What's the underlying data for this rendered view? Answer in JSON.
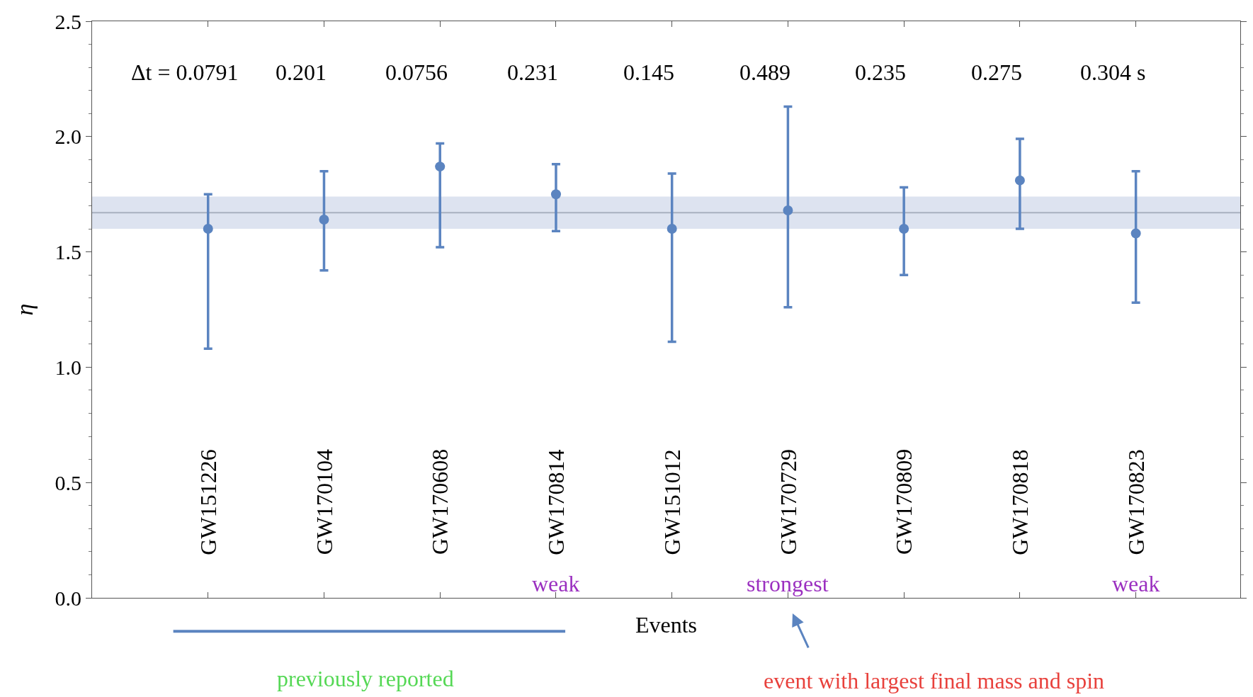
{
  "chart_data": {
    "type": "scatter",
    "xlabel": "Events",
    "ylabel": "η",
    "categories": [
      "GW151226",
      "GW170104",
      "GW170608",
      "GW170814",
      "GW151012",
      "GW170729",
      "GW170809",
      "GW170818",
      "GW170823"
    ],
    "series": [
      {
        "color": "#5b84c0",
        "values": [
          1.6,
          1.64,
          1.87,
          1.75,
          1.6,
          1.68,
          1.6,
          1.81,
          1.58
        ],
        "errors": [
          [
            1.08,
            1.75
          ],
          [
            1.42,
            1.85
          ],
          [
            1.52,
            1.97
          ],
          [
            1.59,
            1.88
          ],
          [
            1.11,
            1.84
          ],
          [
            1.26,
            2.13
          ],
          [
            1.4,
            1.78
          ],
          [
            1.6,
            1.99
          ],
          [
            1.28,
            1.85
          ]
        ]
      }
    ],
    "ylim": [
      0,
      2.5
    ],
    "yticks": [
      {
        "value": 0,
        "label": "0.0"
      },
      0.5,
      {
        "value": 1,
        "label": "1.0"
      },
      1.5,
      {
        "value": 2,
        "label": "2.0"
      },
      2.5
    ],
    "bands": [
      {
        "axis": "y",
        "from": 1.6,
        "to": 1.74,
        "color": "#dde3f0"
      }
    ],
    "ref_lines": [
      {
        "axis": "y",
        "value": 1.67,
        "color": "#a8b0c0"
      }
    ],
    "marker": "circle",
    "legend": false,
    "annotations": [
      "Δt = 0.0791",
      "0.201",
      "0.0756",
      "0.231",
      "0.145",
      "0.489",
      "0.235",
      "0.275",
      "0.304 s",
      "weak",
      "strongest",
      "weak",
      "previously reported",
      "event with largest final mass and spin"
    ]
  }
}
